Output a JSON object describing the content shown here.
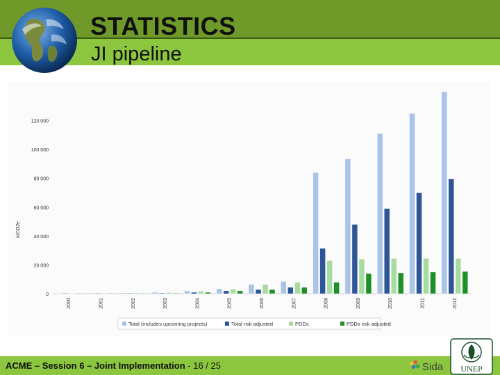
{
  "slide": {
    "title": "STATISTICS",
    "subtitle": "JI pipeline"
  },
  "footer": {
    "org": "ACME",
    "dash": " – ",
    "session": "Session 6",
    "topic": "Joint Implementation",
    "page": " - 16 / 25"
  },
  "logos": {
    "sida_text": "Sida",
    "unep_text": "UNEP"
  },
  "colors": {
    "header_dark": "#6f9a2a",
    "header_light": "#8cc63f",
    "series_total": "#a9c4e8",
    "series_total_risk": "#2f5597",
    "series_pdd": "#a8dba0",
    "series_pdd_risk": "#1f8f2a"
  },
  "chart_data": {
    "type": "bar",
    "title": "",
    "xlabel": "",
    "ylabel": "ktCO2e",
    "ylim": [
      0,
      140000
    ],
    "yticks": [
      0,
      20000,
      40000,
      60000,
      80000,
      100000,
      120000
    ],
    "ytick_labels": [
      "0",
      "20 000",
      "40 000",
      "60 000",
      "80 000",
      "100 000",
      "120 000"
    ],
    "categories": [
      "2000",
      "2001",
      "2002",
      "2003",
      "2004",
      "2005",
      "2006",
      "2007",
      "2008",
      "2009",
      "2010",
      "2011",
      "2012"
    ],
    "legend_position": "bottom",
    "grid": false,
    "series": [
      {
        "name": "Total (includes upcoming projects)",
        "color": "#a9c4e8",
        "values": [
          100,
          500,
          600,
          1000,
          2000,
          3500,
          6500,
          8500,
          84000,
          93500,
          111000,
          125000,
          140000
        ]
      },
      {
        "name": "Total risk adjusted",
        "color": "#2f5597",
        "values": [
          50,
          300,
          400,
          500,
          1000,
          2000,
          3000,
          4500,
          31500,
          48000,
          59000,
          70000,
          79500
        ]
      },
      {
        "name": "PDDs",
        "color": "#a8dba0",
        "values": [
          100,
          500,
          600,
          900,
          1800,
          3300,
          6500,
          8000,
          23000,
          24000,
          24500,
          24500,
          24500
        ]
      },
      {
        "name": "PDDs risk adjusted",
        "color": "#1f8f2a",
        "values": [
          50,
          250,
          300,
          450,
          1000,
          2000,
          3000,
          4500,
          8000,
          14000,
          14500,
          15000,
          15500
        ]
      }
    ]
  }
}
